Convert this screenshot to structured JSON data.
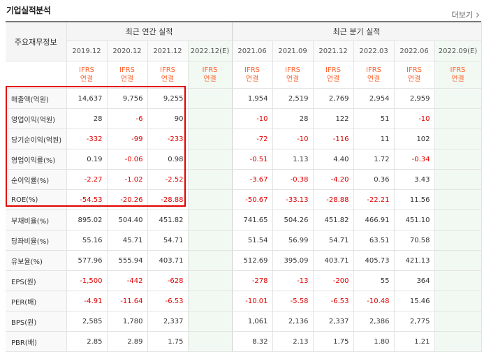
{
  "header": {
    "title": "기업실적분석",
    "more_label": "더보기"
  },
  "table": {
    "corner_label": "주요재무정보",
    "groups": {
      "annual": "최근 연간 실적",
      "quarter": "최근 분기 실적"
    },
    "periods": [
      "2019.12",
      "2020.12",
      "2021.12",
      "2022.12(E)",
      "2021.06",
      "2021.09",
      "2021.12",
      "2022.03",
      "2022.06",
      "2022.09(E)"
    ],
    "ifrs_top": "IFRS",
    "ifrs_bottom": "연결",
    "rows": [
      {
        "label": "매출액(억원)",
        "values": [
          "14,637",
          "9,756",
          "9,255",
          "",
          "1,954",
          "2,519",
          "2,769",
          "2,954",
          "2,959",
          ""
        ]
      },
      {
        "label": "영업이익(억원)",
        "values": [
          "28",
          "-6",
          "90",
          "",
          "-10",
          "28",
          "122",
          "51",
          "-10",
          ""
        ]
      },
      {
        "label": "당기순이익(억원)",
        "values": [
          "-332",
          "-99",
          "-233",
          "",
          "-72",
          "-10",
          "-116",
          "11",
          "102",
          ""
        ]
      },
      {
        "label": "영업이익률(%)",
        "values": [
          "0.19",
          "-0.06",
          "0.98",
          "",
          "-0.51",
          "1.13",
          "4.40",
          "1.72",
          "-0.34",
          ""
        ]
      },
      {
        "label": "순이익률(%)",
        "values": [
          "-2.27",
          "-1.02",
          "-2.52",
          "",
          "-3.67",
          "-0.38",
          "-4.20",
          "0.36",
          "3.43",
          ""
        ]
      },
      {
        "label": "ROE(%)",
        "values": [
          "-54.53",
          "-20.26",
          "-28.88",
          "",
          "-50.67",
          "-33.13",
          "-28.88",
          "-22.21",
          "11.56",
          ""
        ]
      },
      {
        "label": "부채비율(%)",
        "values": [
          "895.02",
          "504.40",
          "451.82",
          "",
          "741.65",
          "504.26",
          "451.82",
          "466.91",
          "451.10",
          ""
        ]
      },
      {
        "label": "당좌비율(%)",
        "values": [
          "55.16",
          "45.71",
          "54.71",
          "",
          "51.54",
          "56.99",
          "54.71",
          "63.51",
          "70.58",
          ""
        ]
      },
      {
        "label": "유보율(%)",
        "values": [
          "577.96",
          "555.94",
          "403.71",
          "",
          "512.69",
          "395.09",
          "403.71",
          "405.73",
          "421.13",
          ""
        ]
      },
      {
        "label": "EPS(원)",
        "values": [
          "-1,500",
          "-442",
          "-628",
          "",
          "-278",
          "-13",
          "-200",
          "55",
          "364",
          ""
        ]
      },
      {
        "label": "PER(배)",
        "values": [
          "-4.91",
          "-11.64",
          "-6.53",
          "",
          "-10.01",
          "-5.58",
          "-6.53",
          "-10.48",
          "15.46",
          ""
        ]
      },
      {
        "label": "BPS(원)",
        "values": [
          "2,585",
          "1,780",
          "2,337",
          "",
          "1,061",
          "2,136",
          "2,337",
          "2,386",
          "2,775",
          ""
        ]
      },
      {
        "label": "PBR(배)",
        "values": [
          "2.85",
          "2.89",
          "1.75",
          "",
          "8.32",
          "2.13",
          "1.75",
          "1.80",
          "1.21",
          ""
        ]
      }
    ]
  },
  "colors": {
    "negative": "#e00000",
    "ifrs": "#ff6633",
    "highlight_box": "#e30000",
    "estimate_bg": "#f2f9f2"
  }
}
